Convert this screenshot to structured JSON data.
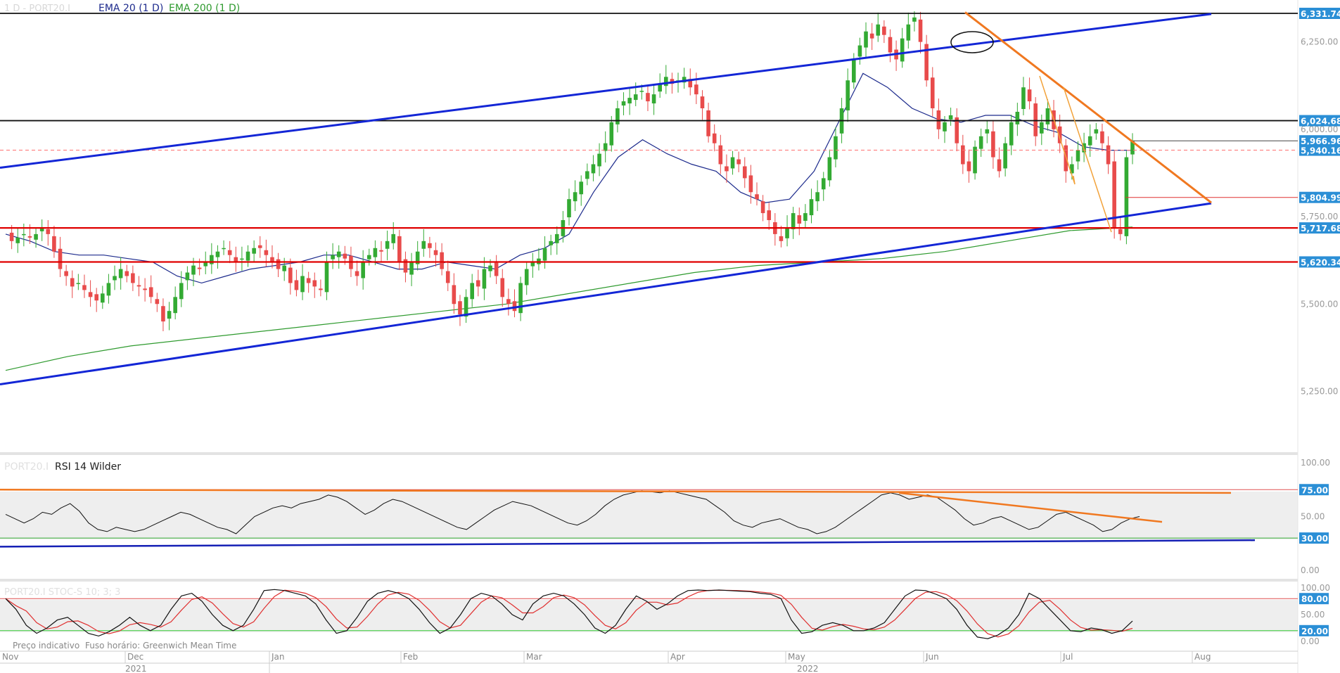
{
  "header": {
    "symbol_label": "1 D - PORT20.I",
    "ema20_label": "EMA 20 (1 D)",
    "ema200_label": "EMA 200 (1 D)"
  },
  "panels": {
    "rsi_label_symbol": "PORT20.I",
    "rsi_label": "RSI 14 Wilder",
    "stoch_label": "PORT20.I STOC-S 10; 3; 3",
    "footer_note1": "Preço indicativo",
    "footer_note2": "Fuso horário: Greenwich Mean Time"
  },
  "colors": {
    "up": "#33aa33",
    "down": "#e84b4b",
    "ema20": "#1c2a8c",
    "ema200": "#2e9a2e",
    "channel": "#1326d6",
    "trend": "#f07820",
    "support": "#e00000",
    "resistance": "#111111",
    "label_bg": "#2b8fd6",
    "stoch_k": "#111111",
    "stoch_d": "#e03030"
  },
  "chart_data": [
    {
      "type": "candlestick",
      "title": "PORT20.I",
      "timeframe": "1 D",
      "ylim": [
        5100,
        6350
      ],
      "y_ticks": [
        5250,
        5500,
        5750,
        6000,
        6250
      ],
      "y_tick_labels": [
        "5,250.00",
        "5,500.00",
        "5,750.00",
        "6,000.00",
        "6,250.00"
      ],
      "x_labels": [
        "Nov",
        "Dec",
        "Jan",
        "Feb",
        "Mar",
        "Apr",
        "May",
        "Jun",
        "Jul",
        "Aug"
      ],
      "year_labels": [
        "2021",
        "2022"
      ],
      "price_levels": [
        {
          "value": 6331.74,
          "label": "6,331.74",
          "style": "resistance"
        },
        {
          "value": 6024.68,
          "label": "6,024.68",
          "style": "resistance"
        },
        {
          "value": 5966.96,
          "label": "5,966.96",
          "style": "current"
        },
        {
          "value": 5940.16,
          "label": "5,940.16",
          "style": "dashed"
        },
        {
          "value": 5804.99,
          "label": "5,804.99",
          "style": "thin"
        },
        {
          "value": 5717.68,
          "label": "5,717.68",
          "style": "support"
        },
        {
          "value": 5620.34,
          "label": "5,620.34",
          "style": "support"
        }
      ],
      "series": [
        {
          "name": "EMA 20 (1 D)"
        },
        {
          "name": "EMA 200 (1 D)"
        }
      ],
      "closes": [
        5710,
        5680,
        5690,
        5700,
        5690,
        5700,
        5720,
        5700,
        5650,
        5600,
        5580,
        5550,
        5560,
        5540,
        5520,
        5510,
        5530,
        5560,
        5580,
        5600,
        5580,
        5560,
        5550,
        5540,
        5520,
        5500,
        5450,
        5480,
        5520,
        5560,
        5590,
        5610,
        5600,
        5620,
        5640,
        5650,
        5660,
        5640,
        5620,
        5630,
        5650,
        5660,
        5660,
        5640,
        5620,
        5600,
        5610,
        5560,
        5540,
        5580,
        5560,
        5550,
        5540,
        5620,
        5640,
        5650,
        5630,
        5600,
        5580,
        5620,
        5640,
        5660,
        5650,
        5680,
        5700,
        5620,
        5590,
        5620,
        5650,
        5680,
        5660,
        5640,
        5600,
        5560,
        5500,
        5470,
        5520,
        5560,
        5550,
        5600,
        5610,
        5580,
        5520,
        5500,
        5480,
        5560,
        5600,
        5620,
        5630,
        5660,
        5680,
        5700,
        5740,
        5800,
        5820,
        5850,
        5880,
        5900,
        5930,
        5960,
        6020,
        6060,
        6080,
        6090,
        6100,
        6110,
        6080,
        6100,
        6130,
        6150,
        6130,
        6140,
        6150,
        6120,
        6100,
        6060,
        5980,
        5960,
        5900,
        5880,
        5920,
        5900,
        5860,
        5820,
        5800,
        5760,
        5740,
        5700,
        5680,
        5720,
        5760,
        5730,
        5760,
        5800,
        5820,
        5860,
        5920,
        5980,
        6060,
        6140,
        6200,
        6240,
        6280,
        6260,
        6300,
        6270,
        6220,
        6200,
        6260,
        6300,
        6320,
        6250,
        6140,
        6060,
        6000,
        6020,
        6040,
        5960,
        5900,
        5880,
        5950,
        5980,
        6000,
        5920,
        5880,
        5960,
        6020,
        6050,
        6120,
        6080,
        5980,
        6020,
        6060,
        6000,
        5960,
        5880,
        5900,
        5940,
        5960,
        5980,
        6000,
        5960,
        5900,
        5720,
        5700,
        5920,
        5966.96
      ],
      "ema20_approx": [
        5700,
        5680,
        5650,
        5640,
        5640,
        5630,
        5620,
        5580,
        5560,
        5580,
        5600,
        5610,
        5620,
        5640,
        5640,
        5620,
        5600,
        5600,
        5620,
        5610,
        5600,
        5640,
        5660,
        5700,
        5820,
        5920,
        5970,
        5930,
        5900,
        5880,
        5820,
        5790,
        5800,
        5880,
        6020,
        6160,
        6120,
        6060,
        6030,
        6020,
        6040,
        6040,
        6010,
        5990,
        5950,
        5940,
        5940
      ],
      "ema200_approx": [
        5310,
        5350,
        5380,
        5400,
        5420,
        5440,
        5460,
        5480,
        5500,
        5530,
        5560,
        5590,
        5610,
        5620,
        5630,
        5650,
        5680,
        5710,
        5720
      ],
      "trendlines": [
        {
          "name": "upper channel",
          "from": [
            "Nov",
            5890
          ],
          "to": [
            "Aug",
            6330
          ]
        },
        {
          "name": "lower channel",
          "from": [
            "Nov",
            5270
          ],
          "to": [
            "Aug",
            5788
          ]
        },
        {
          "name": "downtrend",
          "from": [
            "Jun",
            6335
          ],
          "to": [
            "Aug",
            5790
          ]
        }
      ]
    },
    {
      "type": "line",
      "title": "RSI 14 Wilder",
      "ylim": [
        0,
        100
      ],
      "y_tick_labels": [
        "100.00",
        "75.00",
        "50.00",
        "30.00",
        "0.00"
      ],
      "levels": [
        {
          "value": 75,
          "label": "75.00"
        },
        {
          "value": 30,
          "label": "30.00"
        }
      ],
      "series": [
        {
          "name": "RSI 14 Wilder"
        }
      ],
      "values": [
        52,
        48,
        44,
        48,
        54,
        52,
        58,
        62,
        55,
        44,
        38,
        36,
        40,
        38,
        36,
        38,
        42,
        46,
        50,
        54,
        52,
        48,
        44,
        40,
        38,
        34,
        42,
        50,
        54,
        58,
        60,
        58,
        62,
        64,
        66,
        70,
        68,
        64,
        58,
        52,
        56,
        62,
        66,
        64,
        60,
        56,
        52,
        48,
        44,
        40,
        38,
        44,
        50,
        56,
        60,
        64,
        62,
        60,
        56,
        52,
        48,
        44,
        42,
        46,
        52,
        60,
        66,
        70,
        72,
        74,
        73,
        72,
        74,
        72,
        70,
        68,
        66,
        60,
        54,
        46,
        42,
        40,
        44,
        46,
        48,
        44,
        40,
        38,
        34,
        36,
        40,
        46,
        52,
        58,
        64,
        70,
        72,
        70,
        66,
        68,
        70,
        68,
        62,
        56,
        48,
        42,
        44,
        48,
        50,
        46,
        42,
        38,
        40,
        46,
        52,
        54,
        50,
        46,
        42,
        36,
        38,
        44,
        48,
        50
      ]
    },
    {
      "type": "line",
      "title": "STOC-S 10; 3; 3",
      "ylim": [
        0,
        100
      ],
      "y_tick_labels": [
        "100.00",
        "80.00",
        "50.00",
        "20.00",
        "0.00"
      ],
      "levels": [
        {
          "value": 80,
          "label": "80.00"
        },
        {
          "value": 20,
          "label": "20.00"
        }
      ],
      "series": [
        {
          "name": "%K"
        },
        {
          "name": "%D"
        }
      ],
      "k_values": [
        80,
        60,
        30,
        15,
        25,
        40,
        45,
        30,
        15,
        10,
        18,
        30,
        45,
        30,
        20,
        30,
        60,
        85,
        90,
        75,
        50,
        30,
        20,
        30,
        60,
        95,
        97,
        95,
        90,
        85,
        70,
        40,
        15,
        20,
        45,
        75,
        90,
        95,
        90,
        80,
        60,
        35,
        15,
        25,
        50,
        80,
        90,
        85,
        70,
        50,
        40,
        70,
        85,
        90,
        85,
        70,
        50,
        25,
        15,
        30,
        60,
        85,
        75,
        60,
        70,
        85,
        95,
        96,
        95,
        96,
        95,
        94,
        93,
        90,
        88,
        80,
        40,
        15,
        18,
        30,
        35,
        30,
        20,
        20,
        25,
        35,
        60,
        85,
        96,
        95,
        88,
        80,
        60,
        30,
        8,
        5,
        12,
        25,
        50,
        90,
        80,
        60,
        40,
        20,
        18,
        25,
        22,
        15,
        20,
        38
      ]
    }
  ]
}
